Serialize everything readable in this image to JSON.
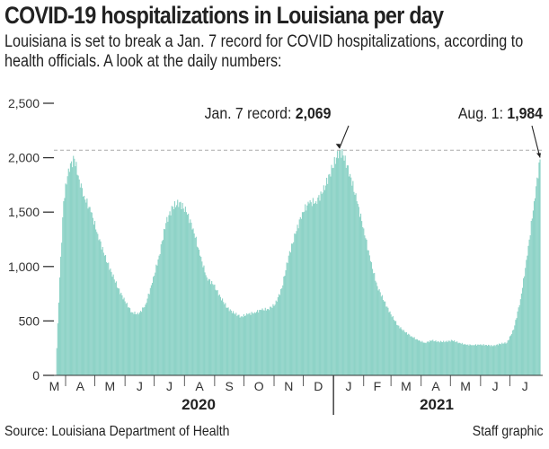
{
  "title": "COVID-19 hospitalizations in Louisiana per day",
  "subtitle": "Louisiana is set to break a Jan. 7 record for COVID hospitalizations, according to health officials. A look at the daily numbers:",
  "source": "Source: Louisiana Department of Health",
  "credit": "Staff graphic",
  "colors": {
    "area": "#8ed3c7",
    "text": "#222222",
    "reference_line": "#aaaaaa"
  },
  "chart_data": {
    "type": "bar",
    "title": "COVID-19 hospitalizations in Louisiana per day",
    "xlabel": "",
    "ylabel": "",
    "ylim": [
      0,
      2500
    ],
    "yticks": [
      0,
      500,
      1000,
      1500,
      2000,
      2500
    ],
    "ytick_labels": [
      "0",
      "500",
      "1,000",
      "1,500",
      "2,000",
      "2,500"
    ],
    "xlim": [
      "2020-03-01",
      "2021-08-01"
    ],
    "month_labels": [
      "M",
      "A",
      "M",
      "J",
      "J",
      "A",
      "S",
      "O",
      "N",
      "D",
      "J",
      "F",
      "M",
      "A",
      "M",
      "J",
      "J"
    ],
    "year_labels": [
      "2020",
      "2021"
    ],
    "grid": false,
    "annotations": [
      {
        "date": "2021-01-07",
        "label": "Jan. 7 record: ",
        "value_label": "2,069",
        "value": 2069
      },
      {
        "date": "2021-08-01",
        "label": "Aug. 1: ",
        "value_label": "1,984",
        "value": 1984
      }
    ],
    "reference_line": 2069,
    "series": [
      {
        "dates": [
          "2020-03-23",
          "2020-03-26",
          "2020-03-30",
          "2020-04-04",
          "2020-04-10",
          "2020-04-15",
          "2020-04-20",
          "2020-04-27",
          "2020-05-04",
          "2020-05-11",
          "2020-05-18",
          "2020-05-25",
          "2020-06-01",
          "2020-06-08",
          "2020-06-15",
          "2020-06-22",
          "2020-06-29",
          "2020-07-06",
          "2020-07-13",
          "2020-07-20",
          "2020-07-27",
          "2020-08-03",
          "2020-08-10",
          "2020-08-17",
          "2020-08-24",
          "2020-08-31",
          "2020-09-07",
          "2020-09-14",
          "2020-09-21",
          "2020-09-28",
          "2020-10-05",
          "2020-10-12",
          "2020-10-19",
          "2020-10-26",
          "2020-11-02",
          "2020-11-09",
          "2020-11-16",
          "2020-11-23",
          "2020-11-30",
          "2020-12-07",
          "2020-12-14",
          "2020-12-21",
          "2020-12-28",
          "2021-01-04",
          "2021-01-07",
          "2021-01-11",
          "2021-01-18",
          "2021-01-25",
          "2021-02-01",
          "2021-02-08",
          "2021-02-15",
          "2021-02-22",
          "2021-03-01",
          "2021-03-08",
          "2021-03-15",
          "2021-03-22",
          "2021-03-29",
          "2021-04-05",
          "2021-04-12",
          "2021-04-19",
          "2021-04-26",
          "2021-05-03",
          "2021-05-10",
          "2021-05-17",
          "2021-05-24",
          "2021-05-31",
          "2021-06-07",
          "2021-06-14",
          "2021-06-21",
          "2021-06-28",
          "2021-07-05",
          "2021-07-12",
          "2021-07-19",
          "2021-07-26",
          "2021-08-01"
        ],
        "values": [
          250,
          900,
          1600,
          1900,
          1990,
          1800,
          1650,
          1500,
          1300,
          1100,
          950,
          800,
          680,
          580,
          560,
          650,
          850,
          1100,
          1400,
          1550,
          1590,
          1500,
          1350,
          1100,
          900,
          830,
          720,
          620,
          570,
          540,
          560,
          580,
          600,
          610,
          650,
          800,
          1100,
          1300,
          1500,
          1580,
          1600,
          1680,
          1850,
          2000,
          2069,
          2020,
          1850,
          1600,
          1350,
          1050,
          820,
          680,
          560,
          460,
          400,
          360,
          320,
          300,
          320,
          310,
          310,
          320,
          300,
          280,
          280,
          280,
          280,
          270,
          290,
          300,
          420,
          700,
          1100,
          1600,
          1984
        ]
      }
    ]
  }
}
